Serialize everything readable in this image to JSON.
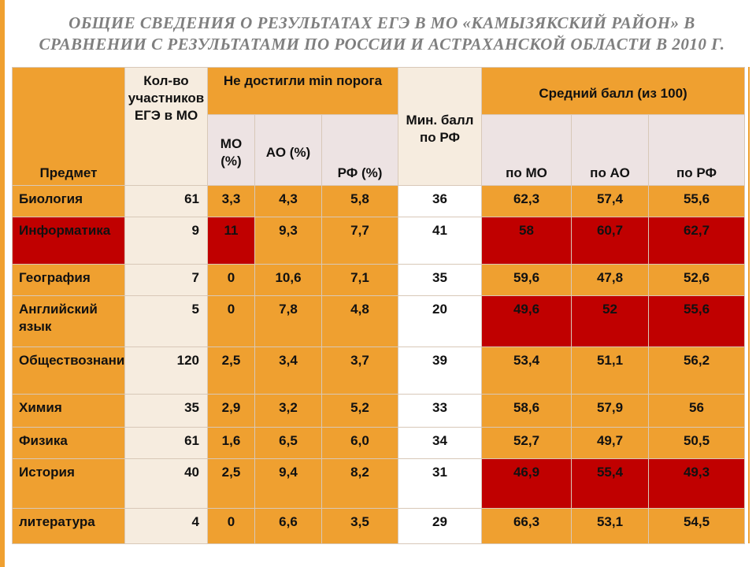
{
  "header": {
    "title": "ОБЩИЕ СВЕДЕНИЯ О РЕЗУЛЬТАТАХ ЕГЭ В МО «КАМЫЗЯКСКИЙ РАЙОН» В СРАВНЕНИИ С РЕЗУЛЬТАТАМИ ПО РОССИИ И АСТРАХАНСКОЙ ОБЛАСТИ В 2010 Г."
  },
  "table": {
    "headers": {
      "subject": "Предмет",
      "count": "Кол-во участников ЕГЭ в МО",
      "not_reached": "Не достигли min порога",
      "mo": "МО (%)",
      "ao": "АО (%)",
      "rf": "РФ (%)",
      "min_score": "Мин. балл по РФ",
      "avg": "Средний балл (из 100)",
      "avg_mo": "по МО",
      "avg_ao": "по АО",
      "avg_rf": "по РФ"
    },
    "rows": [
      [
        "Биология",
        "61",
        "3,3",
        "4,3",
        "5,8",
        "36",
        "62,3",
        "57,4",
        "55,6"
      ],
      [
        "Информатика",
        "9",
        "11",
        "9,3",
        "7,7",
        "41",
        "58",
        "60,7",
        "62,7"
      ],
      [
        "География",
        "7",
        "0",
        "10,6",
        "7,1",
        "35",
        "59,6",
        "47,8",
        "52,6"
      ],
      [
        "Английский язык",
        "5",
        "0",
        "7,8",
        "4,8",
        "20",
        "49,6",
        "52",
        "55,6"
      ],
      [
        "Обществознание",
        "120",
        "2,5",
        "3,4",
        "3,7",
        "39",
        "53,4",
        "51,1",
        "56,2"
      ],
      [
        "Химия",
        "35",
        "2,9",
        "3,2",
        "5,2",
        "33",
        "58,6",
        "57,9",
        "56"
      ],
      [
        "Физика",
        "61",
        "1,6",
        "6,5",
        "6,0",
        "34",
        "52,7",
        "49,7",
        "50,5"
      ],
      [
        "История",
        "40",
        "2,5",
        "9,4",
        "8,2",
        "31",
        "46,9",
        "55,4",
        "49,3"
      ],
      [
        "литература",
        "4",
        "0",
        "6,6",
        "3,5",
        "29",
        "66,3",
        "53,1",
        "54,5"
      ]
    ]
  }
}
